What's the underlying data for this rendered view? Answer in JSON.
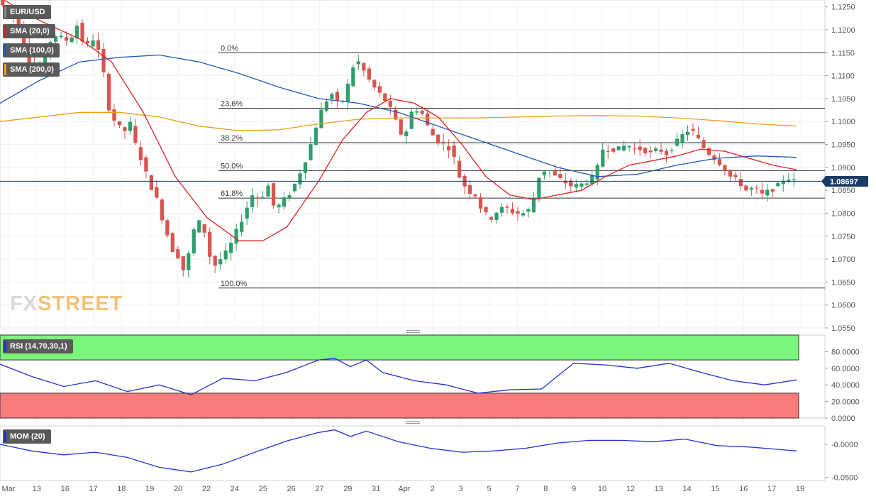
{
  "indicators": {
    "symbol": "EUR/USD",
    "sma20": {
      "label": "SMA (20,0)",
      "color": "#dd2222"
    },
    "sma100": {
      "label": "SMA (100,0)",
      "color": "#2255bb"
    },
    "sma200": {
      "label": "SMA (200,0)",
      "color": "#f29a1d"
    },
    "rsi": {
      "label": "RSI (14,70,30,1)",
      "color": "#2233cc"
    },
    "mom": {
      "label": "MOM (20)",
      "color": "#2233cc"
    }
  },
  "watermark": {
    "part1": "FX",
    "part2": "STREET"
  },
  "chart_data": {
    "type": "candlestick",
    "symbol": "EUR/USD",
    "last_price": "1.08697",
    "price_axis": {
      "range": [
        1.055,
        1.1265
      ],
      "ticks": [
        "1.1250",
        "1.1200",
        "1.1150",
        "1.1100",
        "1.1050",
        "1.1000",
        "1.0950",
        "1.0900",
        "1.0850",
        "1.0800",
        "1.0750",
        "1.0700",
        "1.0650",
        "1.0600",
        "1.0550"
      ]
    },
    "time_axis": [
      "Mar",
      "13",
      "16",
      "17",
      "18",
      "19",
      "20",
      "22",
      "24",
      "25",
      "26",
      "27",
      "29",
      "31",
      "Apr",
      "2",
      "3",
      "5",
      "7",
      "8",
      "9",
      "10",
      "12",
      "13",
      "14",
      "15",
      "16",
      "17",
      "19"
    ],
    "fibonacci": [
      {
        "label": "0.0%",
        "price": 1.115
      },
      {
        "label": "23.6%",
        "price": 1.1029
      },
      {
        "label": "38.2%",
        "price": 1.0954
      },
      {
        "label": "50.0%",
        "price": 1.0893
      },
      {
        "label": "61.8%",
        "price": 1.0833
      },
      {
        "label": "100.0%",
        "price": 1.0637
      }
    ],
    "price_path": [
      [
        0,
        1.1265
      ],
      [
        0.02,
        1.123
      ],
      [
        0.03,
        1.1195
      ],
      [
        0.04,
        1.113
      ],
      [
        0.05,
        1.1105
      ],
      [
        0.07,
        1.119
      ],
      [
        0.09,
        1.1175
      ],
      [
        0.1,
        1.121
      ],
      [
        0.11,
        1.116
      ],
      [
        0.12,
        1.118
      ],
      [
        0.13,
        1.114
      ],
      [
        0.14,
        1.103
      ],
      [
        0.15,
        1.099
      ],
      [
        0.16,
        1.098
      ],
      [
        0.165,
        1.101
      ],
      [
        0.17,
        1.0965
      ],
      [
        0.18,
        1.092
      ],
      [
        0.19,
        1.087
      ],
      [
        0.2,
        1.083
      ],
      [
        0.21,
        1.077
      ],
      [
        0.22,
        1.072
      ],
      [
        0.23,
        1.07
      ],
      [
        0.235,
        1.0665
      ],
      [
        0.24,
        1.071
      ],
      [
        0.25,
        1.079
      ],
      [
        0.26,
        1.076
      ],
      [
        0.27,
        1.068
      ],
      [
        0.28,
        1.07
      ],
      [
        0.29,
        1.072
      ],
      [
        0.3,
        1.076
      ],
      [
        0.31,
        1.08
      ],
      [
        0.32,
        1.084
      ],
      [
        0.33,
        1.083
      ],
      [
        0.34,
        1.086
      ],
      [
        0.345,
        1.082
      ],
      [
        0.35,
        1.081
      ],
      [
        0.36,
        1.083
      ],
      [
        0.37,
        1.085
      ],
      [
        0.38,
        1.089
      ],
      [
        0.39,
        1.093
      ],
      [
        0.4,
        1.099
      ],
      [
        0.41,
        1.104
      ],
      [
        0.42,
        1.106
      ],
      [
        0.43,
        1.103
      ],
      [
        0.44,
        1.108
      ],
      [
        0.45,
        1.114
      ],
      [
        0.46,
        1.111
      ],
      [
        0.47,
        1.108
      ],
      [
        0.48,
        1.106
      ],
      [
        0.49,
        1.104
      ],
      [
        0.5,
        1.1
      ],
      [
        0.51,
        1.096
      ],
      [
        0.52,
        1.102
      ],
      [
        0.53,
        1.103
      ],
      [
        0.54,
        1.099
      ],
      [
        0.55,
        1.096
      ],
      [
        0.56,
        1.095
      ],
      [
        0.57,
        1.094
      ],
      [
        0.58,
        1.088
      ],
      [
        0.59,
        1.085
      ],
      [
        0.6,
        1.084
      ],
      [
        0.61,
        1.08
      ],
      [
        0.62,
        1.079
      ],
      [
        0.63,
        1.081
      ],
      [
        0.64,
        1.081
      ],
      [
        0.65,
        1.08
      ],
      [
        0.66,
        1.08
      ],
      [
        0.67,
        1.081
      ],
      [
        0.68,
        1.088
      ],
      [
        0.69,
        1.09
      ],
      [
        0.7,
        1.088
      ],
      [
        0.71,
        1.087
      ],
      [
        0.72,
        1.086
      ],
      [
        0.73,
        1.086
      ],
      [
        0.74,
        1.087
      ],
      [
        0.75,
        1.088
      ],
      [
        0.76,
        1.094
      ],
      [
        0.77,
        1.094
      ],
      [
        0.78,
        1.094
      ],
      [
        0.79,
        1.095
      ],
      [
        0.8,
        1.094
      ],
      [
        0.81,
        1.094
      ],
      [
        0.82,
        1.093
      ],
      [
        0.83,
        1.094
      ],
      [
        0.84,
        1.093
      ],
      [
        0.85,
        1.095
      ],
      [
        0.86,
        1.097
      ],
      [
        0.87,
        1.0985
      ],
      [
        0.88,
        1.096
      ],
      [
        0.89,
        1.0935
      ],
      [
        0.9,
        1.092
      ],
      [
        0.91,
        1.0905
      ],
      [
        0.92,
        1.088
      ],
      [
        0.93,
        1.087
      ],
      [
        0.94,
        1.085
      ],
      [
        0.95,
        1.0855
      ],
      [
        0.96,
        1.084
      ],
      [
        0.97,
        1.085
      ],
      [
        0.98,
        1.086
      ],
      [
        0.99,
        1.088
      ],
      [
        1.0,
        1.087
      ]
    ],
    "sma20_path": [
      [
        0,
        1.127
      ],
      [
        0.05,
        1.122
      ],
      [
        0.1,
        1.118
      ],
      [
        0.14,
        1.113
      ],
      [
        0.18,
        1.102
      ],
      [
        0.22,
        1.088
      ],
      [
        0.26,
        1.079
      ],
      [
        0.3,
        1.074
      ],
      [
        0.33,
        1.074
      ],
      [
        0.36,
        1.077
      ],
      [
        0.4,
        1.087
      ],
      [
        0.43,
        1.096
      ],
      [
        0.46,
        1.102
      ],
      [
        0.49,
        1.105
      ],
      [
        0.52,
        1.104
      ],
      [
        0.55,
        1.101
      ],
      [
        0.58,
        1.095
      ],
      [
        0.61,
        1.088
      ],
      [
        0.64,
        1.084
      ],
      [
        0.67,
        1.083
      ],
      [
        0.7,
        1.084
      ],
      [
        0.73,
        1.085
      ],
      [
        0.76,
        1.088
      ],
      [
        0.79,
        1.0905
      ],
      [
        0.82,
        1.0915
      ],
      [
        0.85,
        1.0925
      ],
      [
        0.88,
        1.094
      ],
      [
        0.91,
        1.0935
      ],
      [
        0.94,
        1.092
      ],
      [
        0.97,
        1.0905
      ],
      [
        1.0,
        1.0895
      ]
    ],
    "sma100_path": [
      [
        0,
        1.104
      ],
      [
        0.05,
        1.109
      ],
      [
        0.1,
        1.113
      ],
      [
        0.15,
        1.114
      ],
      [
        0.2,
        1.1145
      ],
      [
        0.25,
        1.113
      ],
      [
        0.3,
        1.1105
      ],
      [
        0.35,
        1.1075
      ],
      [
        0.4,
        1.105
      ],
      [
        0.45,
        1.104
      ],
      [
        0.5,
        1.102
      ],
      [
        0.55,
        1.099
      ],
      [
        0.6,
        1.096
      ],
      [
        0.65,
        1.093
      ],
      [
        0.7,
        1.09
      ],
      [
        0.75,
        1.088
      ],
      [
        0.8,
        1.0885
      ],
      [
        0.85,
        1.0905
      ],
      [
        0.9,
        1.092
      ],
      [
        0.95,
        1.0925
      ],
      [
        1.0,
        1.0922
      ]
    ],
    "sma200_path": [
      [
        0,
        1.1
      ],
      [
        0.05,
        1.101
      ],
      [
        0.1,
        1.102
      ],
      [
        0.15,
        1.102
      ],
      [
        0.2,
        1.101
      ],
      [
        0.25,
        1.099
      ],
      [
        0.3,
        1.098
      ],
      [
        0.35,
        1.0982
      ],
      [
        0.4,
        1.0995
      ],
      [
        0.45,
        1.1005
      ],
      [
        0.5,
        1.1008
      ],
      [
        0.55,
        1.1008
      ],
      [
        0.6,
        1.1008
      ],
      [
        0.65,
        1.101
      ],
      [
        0.7,
        1.1012
      ],
      [
        0.75,
        1.1013
      ],
      [
        0.8,
        1.1012
      ],
      [
        0.85,
        1.1008
      ],
      [
        0.9,
        1.1002
      ],
      [
        0.95,
        1.0995
      ],
      [
        1.0,
        1.099
      ]
    ],
    "rsi": {
      "ticks": [
        "80.0000",
        "60.0000",
        "40.0000",
        "20.0000",
        "0.0000"
      ],
      "range": [
        0,
        100
      ],
      "overbought": 70,
      "oversold": 30,
      "path": [
        [
          0,
          65
        ],
        [
          0.04,
          50
        ],
        [
          0.08,
          38
        ],
        [
          0.12,
          45
        ],
        [
          0.16,
          32
        ],
        [
          0.2,
          40
        ],
        [
          0.24,
          28
        ],
        [
          0.28,
          48
        ],
        [
          0.32,
          45
        ],
        [
          0.36,
          55
        ],
        [
          0.4,
          70
        ],
        [
          0.42,
          72
        ],
        [
          0.44,
          62
        ],
        [
          0.46,
          70
        ],
        [
          0.48,
          55
        ],
        [
          0.52,
          45
        ],
        [
          0.56,
          40
        ],
        [
          0.6,
          30
        ],
        [
          0.64,
          34
        ],
        [
          0.68,
          35
        ],
        [
          0.72,
          66
        ],
        [
          0.76,
          64
        ],
        [
          0.8,
          60
        ],
        [
          0.84,
          66
        ],
        [
          0.88,
          55
        ],
        [
          0.92,
          45
        ],
        [
          0.96,
          40
        ],
        [
          1.0,
          46
        ]
      ]
    },
    "mom": {
      "ticks": [
        "-0.0000",
        "-0.0500"
      ],
      "range": [
        -0.055,
        0.028
      ],
      "path": [
        [
          0,
          0.0
        ],
        [
          0.04,
          -0.01
        ],
        [
          0.08,
          -0.016
        ],
        [
          0.12,
          -0.012
        ],
        [
          0.16,
          -0.02
        ],
        [
          0.2,
          -0.035
        ],
        [
          0.24,
          -0.042
        ],
        [
          0.28,
          -0.03
        ],
        [
          0.32,
          -0.012
        ],
        [
          0.36,
          0.005
        ],
        [
          0.4,
          0.018
        ],
        [
          0.42,
          0.022
        ],
        [
          0.44,
          0.012
        ],
        [
          0.46,
          0.02
        ],
        [
          0.5,
          0.004
        ],
        [
          0.54,
          -0.006
        ],
        [
          0.58,
          -0.012
        ],
        [
          0.62,
          -0.01
        ],
        [
          0.66,
          -0.006
        ],
        [
          0.7,
          0.002
        ],
        [
          0.74,
          0.006
        ],
        [
          0.78,
          0.006
        ],
        [
          0.82,
          0.004
        ],
        [
          0.86,
          0.008
        ],
        [
          0.9,
          -0.002
        ],
        [
          0.94,
          -0.004
        ],
        [
          0.98,
          -0.008
        ],
        [
          1.0,
          -0.01
        ]
      ]
    }
  }
}
